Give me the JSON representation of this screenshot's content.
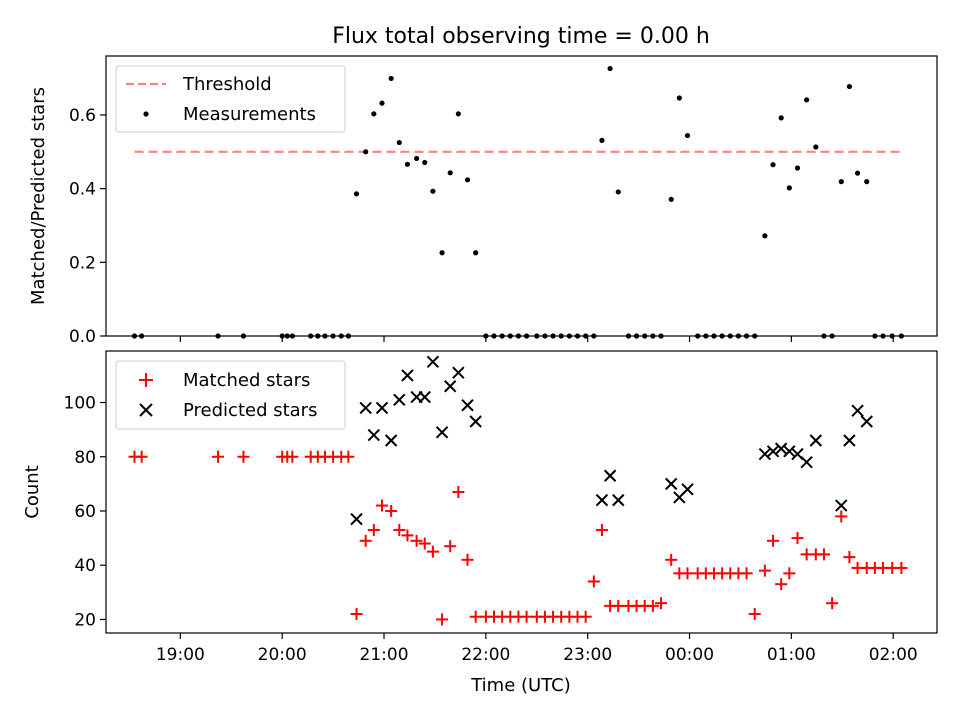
{
  "chart_data": [
    {
      "type": "scatter",
      "title": "Flux total observing time = 0.00 h",
      "xlabel": "",
      "ylabel": "Matched/Predicted stars",
      "ylim": [
        0,
        0.76
      ],
      "yticks": [
        0.0,
        0.2,
        0.4,
        0.6
      ],
      "ytick_labels": [
        "0.0",
        "0.2",
        "0.4",
        "0.6"
      ],
      "x_unit": "hours since 00:00 UTC (times before midnight are negative)",
      "xlim": [
        -5.73,
        2.43
      ],
      "grid": false,
      "legend_position": "upper left",
      "legend": [
        "Threshold",
        "Measurements"
      ],
      "threshold": {
        "name": "Threshold",
        "y": 0.5,
        "x_from": -5.45,
        "x_to": 2.08,
        "color": "#ff8080"
      },
      "series": [
        {
          "name": "Measurements",
          "color": "#000000",
          "points": [
            [
              -5.45,
              0.0
            ],
            [
              -5.38,
              0.0
            ],
            [
              -4.63,
              0.0
            ],
            [
              -4.38,
              0.0
            ],
            [
              -4.0,
              0.0
            ],
            [
              -3.95,
              0.0
            ],
            [
              -3.9,
              0.0
            ],
            [
              -3.72,
              0.0
            ],
            [
              -3.65,
              0.0
            ],
            [
              -3.58,
              0.0
            ],
            [
              -3.5,
              0.0
            ],
            [
              -3.42,
              0.0
            ],
            [
              -3.35,
              0.0
            ],
            [
              -3.27,
              0.386
            ],
            [
              -3.18,
              0.5
            ],
            [
              -3.1,
              0.603
            ],
            [
              -3.02,
              0.632
            ],
            [
              -2.93,
              0.699
            ],
            [
              -2.85,
              0.525
            ],
            [
              -2.77,
              0.466
            ],
            [
              -2.68,
              0.482
            ],
            [
              -2.6,
              0.471
            ],
            [
              -2.52,
              0.393
            ],
            [
              -2.43,
              0.226
            ],
            [
              -2.35,
              0.443
            ],
            [
              -2.27,
              0.603
            ],
            [
              -2.18,
              0.424
            ],
            [
              -2.1,
              0.226
            ],
            [
              -2.0,
              0.0
            ],
            [
              -1.92,
              0.0
            ],
            [
              -1.84,
              0.0
            ],
            [
              -1.76,
              0.0
            ],
            [
              -1.68,
              0.0
            ],
            [
              -1.6,
              0.0
            ],
            [
              -1.5,
              0.0
            ],
            [
              -1.42,
              0.0
            ],
            [
              -1.34,
              0.0
            ],
            [
              -1.26,
              0.0
            ],
            [
              -1.18,
              0.0
            ],
            [
              -1.1,
              0.0
            ],
            [
              -1.02,
              0.0
            ],
            [
              -0.94,
              0.0
            ],
            [
              -0.86,
              0.531
            ],
            [
              -0.78,
              0.726
            ],
            [
              -0.7,
              0.391
            ],
            [
              -0.6,
              0.0
            ],
            [
              -0.52,
              0.0
            ],
            [
              -0.44,
              0.0
            ],
            [
              -0.36,
              0.0
            ],
            [
              -0.28,
              0.0
            ],
            [
              -0.18,
              0.371
            ],
            [
              -0.1,
              0.646
            ],
            [
              -0.02,
              0.544
            ],
            [
              0.08,
              0.0
            ],
            [
              0.16,
              0.0
            ],
            [
              0.24,
              0.0
            ],
            [
              0.32,
              0.0
            ],
            [
              0.4,
              0.0
            ],
            [
              0.48,
              0.0
            ],
            [
              0.56,
              0.0
            ],
            [
              0.64,
              0.0
            ],
            [
              0.74,
              0.272
            ],
            [
              0.82,
              0.465
            ],
            [
              0.9,
              0.592
            ],
            [
              0.98,
              0.402
            ],
            [
              1.06,
              0.456
            ],
            [
              1.15,
              0.641
            ],
            [
              1.24,
              0.513
            ],
            [
              1.32,
              0.0
            ],
            [
              1.4,
              0.0
            ],
            [
              1.49,
              0.419
            ],
            [
              1.57,
              0.677
            ],
            [
              1.65,
              0.442
            ],
            [
              1.74,
              0.419
            ],
            [
              1.82,
              0.0
            ],
            [
              1.9,
              0.0
            ],
            [
              1.99,
              0.0
            ],
            [
              2.08,
              0.0
            ]
          ]
        }
      ]
    },
    {
      "type": "scatter",
      "title": "",
      "xlabel": "Time (UTC)",
      "ylabel": "Count",
      "ylim": [
        15,
        119
      ],
      "yticks": [
        20,
        40,
        60,
        80,
        100
      ],
      "ytick_labels": [
        "20",
        "40",
        "60",
        "80",
        "100"
      ],
      "x_unit": "hours since 00:00 UTC (times before midnight are negative)",
      "xlim": [
        -5.73,
        2.43
      ],
      "xticks": [
        -5,
        -4,
        -3,
        -2,
        -1,
        0,
        1,
        2
      ],
      "xtick_labels": [
        "19:00",
        "20:00",
        "21:00",
        "22:00",
        "23:00",
        "00:00",
        "01:00",
        "02:00"
      ],
      "grid": false,
      "legend_position": "upper left",
      "legend": [
        "Matched stars",
        "Predicted stars"
      ],
      "series": [
        {
          "name": "Matched stars",
          "marker": "+",
          "color": "#ff0000",
          "points": [
            [
              -5.45,
              80
            ],
            [
              -5.38,
              80
            ],
            [
              -4.63,
              80
            ],
            [
              -4.38,
              80
            ],
            [
              -4.0,
              80
            ],
            [
              -3.95,
              80
            ],
            [
              -3.9,
              80
            ],
            [
              -3.72,
              80
            ],
            [
              -3.65,
              80
            ],
            [
              -3.58,
              80
            ],
            [
              -3.5,
              80
            ],
            [
              -3.42,
              80
            ],
            [
              -3.35,
              80
            ],
            [
              -3.27,
              22
            ],
            [
              -3.18,
              49
            ],
            [
              -3.1,
              53
            ],
            [
              -3.02,
              62
            ],
            [
              -2.93,
              60
            ],
            [
              -2.85,
              53
            ],
            [
              -2.77,
              51
            ],
            [
              -2.68,
              49
            ],
            [
              -2.6,
              48
            ],
            [
              -2.52,
              45
            ],
            [
              -2.43,
              20
            ],
            [
              -2.35,
              47
            ],
            [
              -2.27,
              67
            ],
            [
              -2.18,
              42
            ],
            [
              -2.1,
              21
            ],
            [
              -2.0,
              21
            ],
            [
              -1.92,
              21
            ],
            [
              -1.84,
              21
            ],
            [
              -1.76,
              21
            ],
            [
              -1.68,
              21
            ],
            [
              -1.6,
              21
            ],
            [
              -1.5,
              21
            ],
            [
              -1.42,
              21
            ],
            [
              -1.34,
              21
            ],
            [
              -1.26,
              21
            ],
            [
              -1.18,
              21
            ],
            [
              -1.1,
              21
            ],
            [
              -1.02,
              21
            ],
            [
              -0.94,
              34
            ],
            [
              -0.86,
              53
            ],
            [
              -0.78,
              25
            ],
            [
              -0.7,
              25
            ],
            [
              -0.6,
              25
            ],
            [
              -0.52,
              25
            ],
            [
              -0.44,
              25
            ],
            [
              -0.36,
              25
            ],
            [
              -0.28,
              26
            ],
            [
              -0.18,
              42
            ],
            [
              -0.1,
              37
            ],
            [
              -0.02,
              37
            ],
            [
              0.08,
              37
            ],
            [
              0.16,
              37
            ],
            [
              0.24,
              37
            ],
            [
              0.32,
              37
            ],
            [
              0.4,
              37
            ],
            [
              0.48,
              37
            ],
            [
              0.56,
              37
            ],
            [
              0.64,
              22
            ],
            [
              0.74,
              38
            ],
            [
              0.82,
              49
            ],
            [
              0.9,
              33
            ],
            [
              0.98,
              37
            ],
            [
              1.06,
              50
            ],
            [
              1.15,
              44
            ],
            [
              1.24,
              44
            ],
            [
              1.32,
              44
            ],
            [
              1.4,
              26
            ],
            [
              1.49,
              58
            ],
            [
              1.57,
              43
            ],
            [
              1.65,
              39
            ],
            [
              1.74,
              39
            ],
            [
              1.82,
              39
            ],
            [
              1.9,
              39
            ],
            [
              1.99,
              39
            ],
            [
              2.08,
              39
            ]
          ]
        },
        {
          "name": "Predicted stars",
          "marker": "x",
          "color": "#000000",
          "points": [
            [
              -3.27,
              57
            ],
            [
              -3.18,
              98
            ],
            [
              -3.1,
              88
            ],
            [
              -3.02,
              98
            ],
            [
              -2.93,
              86
            ],
            [
              -2.85,
              101
            ],
            [
              -2.77,
              110
            ],
            [
              -2.68,
              102
            ],
            [
              -2.6,
              102
            ],
            [
              -2.52,
              115
            ],
            [
              -2.43,
              89
            ],
            [
              -2.35,
              106
            ],
            [
              -2.27,
              111
            ],
            [
              -2.18,
              99
            ],
            [
              -2.1,
              93
            ],
            [
              -0.86,
              64
            ],
            [
              -0.78,
              73
            ],
            [
              -0.7,
              64
            ],
            [
              -0.18,
              70
            ],
            [
              -0.1,
              65
            ],
            [
              -0.02,
              68
            ],
            [
              0.74,
              81
            ],
            [
              0.82,
              82
            ],
            [
              0.9,
              83
            ],
            [
              0.98,
              82
            ],
            [
              1.06,
              81
            ],
            [
              1.15,
              78
            ],
            [
              1.24,
              86
            ],
            [
              1.49,
              62
            ],
            [
              1.57,
              86
            ],
            [
              1.65,
              97
            ],
            [
              1.74,
              93
            ]
          ]
        }
      ]
    }
  ]
}
